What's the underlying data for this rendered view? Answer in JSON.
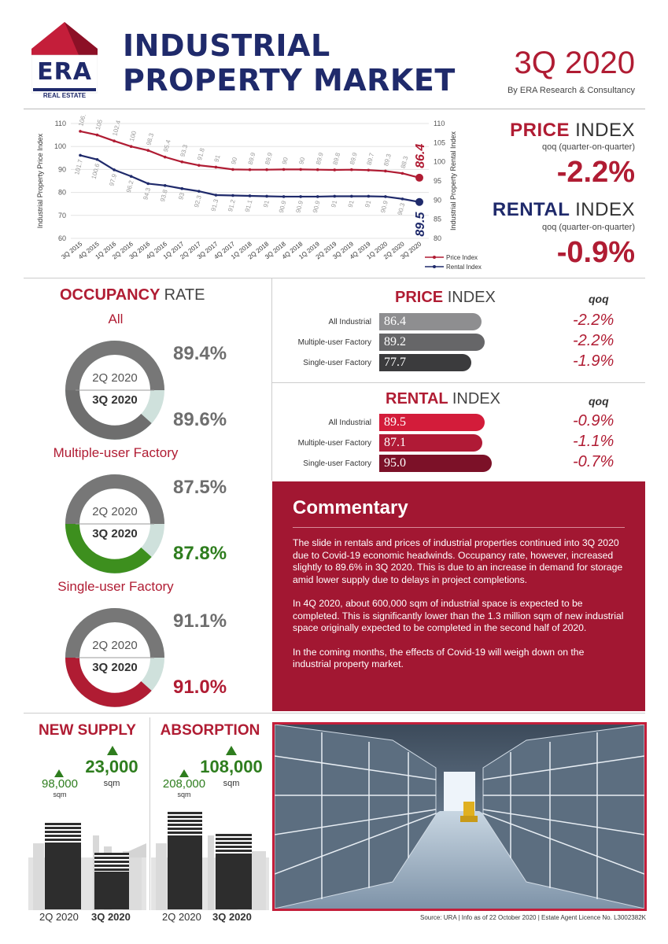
{
  "header": {
    "logo_text": "ERA",
    "logo_sub": "REAL ESTATE",
    "title_line1": "INDUSTRIAL",
    "title_line2": "PROPERTY MARKET",
    "period": "3Q 2020",
    "byline": "By ERA Research & Consultancy"
  },
  "chart_data": {
    "type": "line",
    "x": [
      "3Q 2015",
      "4Q 2015",
      "1Q 2016",
      "2Q 2016",
      "3Q 2016",
      "4Q 2016",
      "1Q 2017",
      "2Q 2017",
      "3Q 2017",
      "4Q 2017",
      "1Q 2018",
      "2Q 2018",
      "3Q 2018",
      "4Q 2018",
      "1Q 2019",
      "2Q 2019",
      "3Q 2019",
      "4Q 2019",
      "1Q 2020",
      "2Q 2020",
      "3Q 2020"
    ],
    "series": [
      {
        "name": "Price Index",
        "axis": "left",
        "color": "#b01c33",
        "values": [
          106.6,
          105,
          102.4,
          100,
          98.3,
          95.4,
          93.3,
          91.8,
          91,
          90,
          89.9,
          89.9,
          90,
          90,
          89.9,
          89.8,
          89.9,
          89.7,
          89.3,
          88.3,
          86.4
        ]
      },
      {
        "name": "Rental Index",
        "axis": "right",
        "color": "#1f2a6b",
        "values": [
          101.7,
          100.6,
          97.9,
          96.2,
          94.3,
          93.8,
          93,
          92.3,
          91.3,
          91.2,
          91.1,
          91,
          90.9,
          90.9,
          90.9,
          91,
          91,
          91,
          90.9,
          90.3,
          89.5
        ]
      }
    ],
    "ylabel": "Industrial Property Price Index",
    "y2label": "Industrial Property Rental Index",
    "ylim": [
      60,
      110
    ],
    "y2lim": [
      80,
      110
    ],
    "yticks": [
      "60",
      "70",
      "80",
      "90",
      "100",
      "110"
    ],
    "y2ticks": [
      "80",
      "85",
      "90",
      "95",
      "100",
      "105",
      "110"
    ],
    "last_price_label": "86.4",
    "last_rental_label": "89.5",
    "legend": "bottom-right"
  },
  "indices": {
    "price_word": "PRICE",
    "rental_word": "RENTAL",
    "index_word": "INDEX",
    "qoq_desc": "qoq (quarter-on-quarter)",
    "price_qoq": "-2.2%",
    "rental_qoq": "-0.9%"
  },
  "occupancy": {
    "head_bold": "OCCUPANCY",
    "head_light": "RATE",
    "prev_label": "2Q 2020",
    "curr_label": "3Q 2020",
    "items": [
      {
        "label": "All",
        "prev": "89.4%",
        "curr": "89.6%",
        "color": "#6e6e6e",
        "curr_color": "#6e6e6e"
      },
      {
        "label": "Multiple-user Factory",
        "prev": "87.5%",
        "curr": "87.8%",
        "color": "#3d8f1e",
        "curr_color": "#2e7d1e"
      },
      {
        "label": "Single-user Factory",
        "prev": "91.1%",
        "curr": "91.0%",
        "color": "#b01c33",
        "curr_color": "#b01c33"
      }
    ]
  },
  "price_bars": {
    "head_bold": "PRICE",
    "head_light": "INDEX",
    "qoq_head": "qoq",
    "rows": [
      {
        "label": "All Industrial",
        "value": "86.4",
        "fill": 0.864,
        "color": "#8e8e90",
        "qoq": "-2.2%"
      },
      {
        "label": "Multiple-user Factory",
        "value": "89.2",
        "fill": 0.892,
        "color": "#666668",
        "qoq": "-2.2%"
      },
      {
        "label": "Single-user Factory",
        "value": "77.7",
        "fill": 0.777,
        "color": "#3b3b3d",
        "qoq": "-1.9%"
      }
    ]
  },
  "rental_bars": {
    "head_bold": "RENTAL",
    "head_light": "INDEX",
    "qoq_head": "qoq",
    "rows": [
      {
        "label": "All Industrial",
        "value": "89.5",
        "fill": 0.895,
        "color": "#d31c3a",
        "qoq": "-0.9%"
      },
      {
        "label": "Multiple-user Factory",
        "value": "87.1",
        "fill": 0.871,
        "color": "#b01a36",
        "qoq": "-1.1%"
      },
      {
        "label": "Single-user Factory",
        "value": "95.0",
        "fill": 0.95,
        "color": "#7c1128",
        "qoq": "-0.7%"
      }
    ]
  },
  "commentary": {
    "title": "Commentary",
    "p1": "The slide in rentals and prices of industrial properties continued into 3Q 2020 due to Covid-19 economic headwinds. Occupancy rate, however, increased slightly to 89.6% in 3Q 2020. This is due to an increase in demand for storage amid lower supply due to delays in project completions.",
    "p2": "In 4Q 2020, about 600,000 sqm of industrial space is expected to be completed. This is significantly lower than the 1.3 million sqm of new industrial space originally expected to be completed in the second half of 2020.",
    "p3": "In the coming months, the effects of Covid-19 will weigh down on the industrial property market."
  },
  "supply": {
    "title": "NEW SUPPLY",
    "prev_value": "98,000",
    "curr_value": "23,000",
    "unit": "sqm",
    "prev_label": "2Q 2020",
    "curr_label": "3Q 2020"
  },
  "absorption": {
    "title": "ABSORPTION",
    "prev_value": "208,000",
    "curr_value": "108,000",
    "unit": "sqm",
    "prev_label": "2Q 2020",
    "curr_label": "3Q 2020"
  },
  "footer": "Source: URA | Info as of 22 October 2020 | Estate Agent Licence No. L3002382K"
}
